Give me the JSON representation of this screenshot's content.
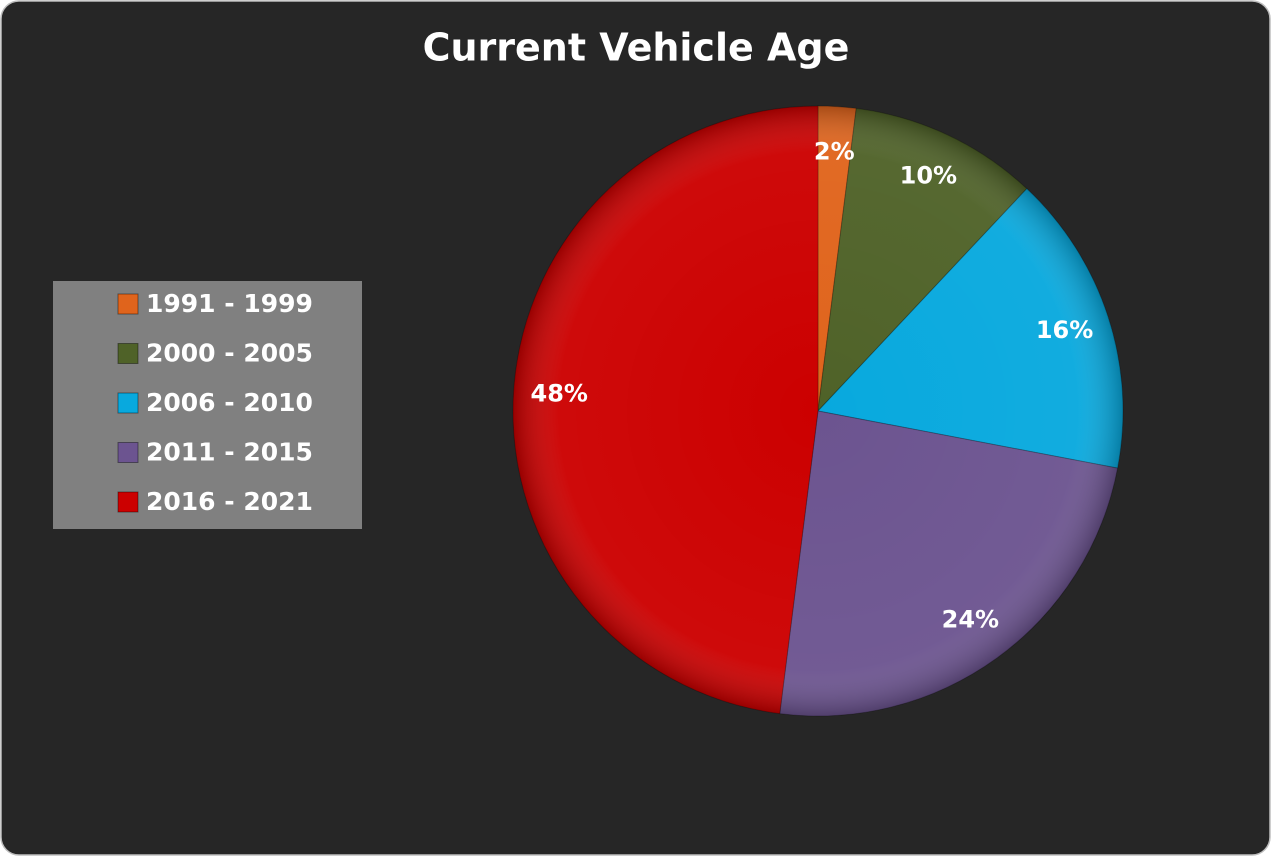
{
  "chart_data": {
    "type": "pie",
    "title": "Current Vehicle Age",
    "categories": [
      "1991 - 1999",
      "2000 - 2005",
      "2006 - 2010",
      "2011 - 2015",
      "2016 - 2021"
    ],
    "values": [
      2,
      10,
      16,
      24,
      48
    ],
    "value_labels": [
      "2%",
      "10%",
      "16%",
      "24%",
      "48%"
    ],
    "colors": [
      "#e0641c",
      "#4f6228",
      "#08a9de",
      "#6c5490",
      "#cc0000"
    ],
    "legend": "left"
  }
}
